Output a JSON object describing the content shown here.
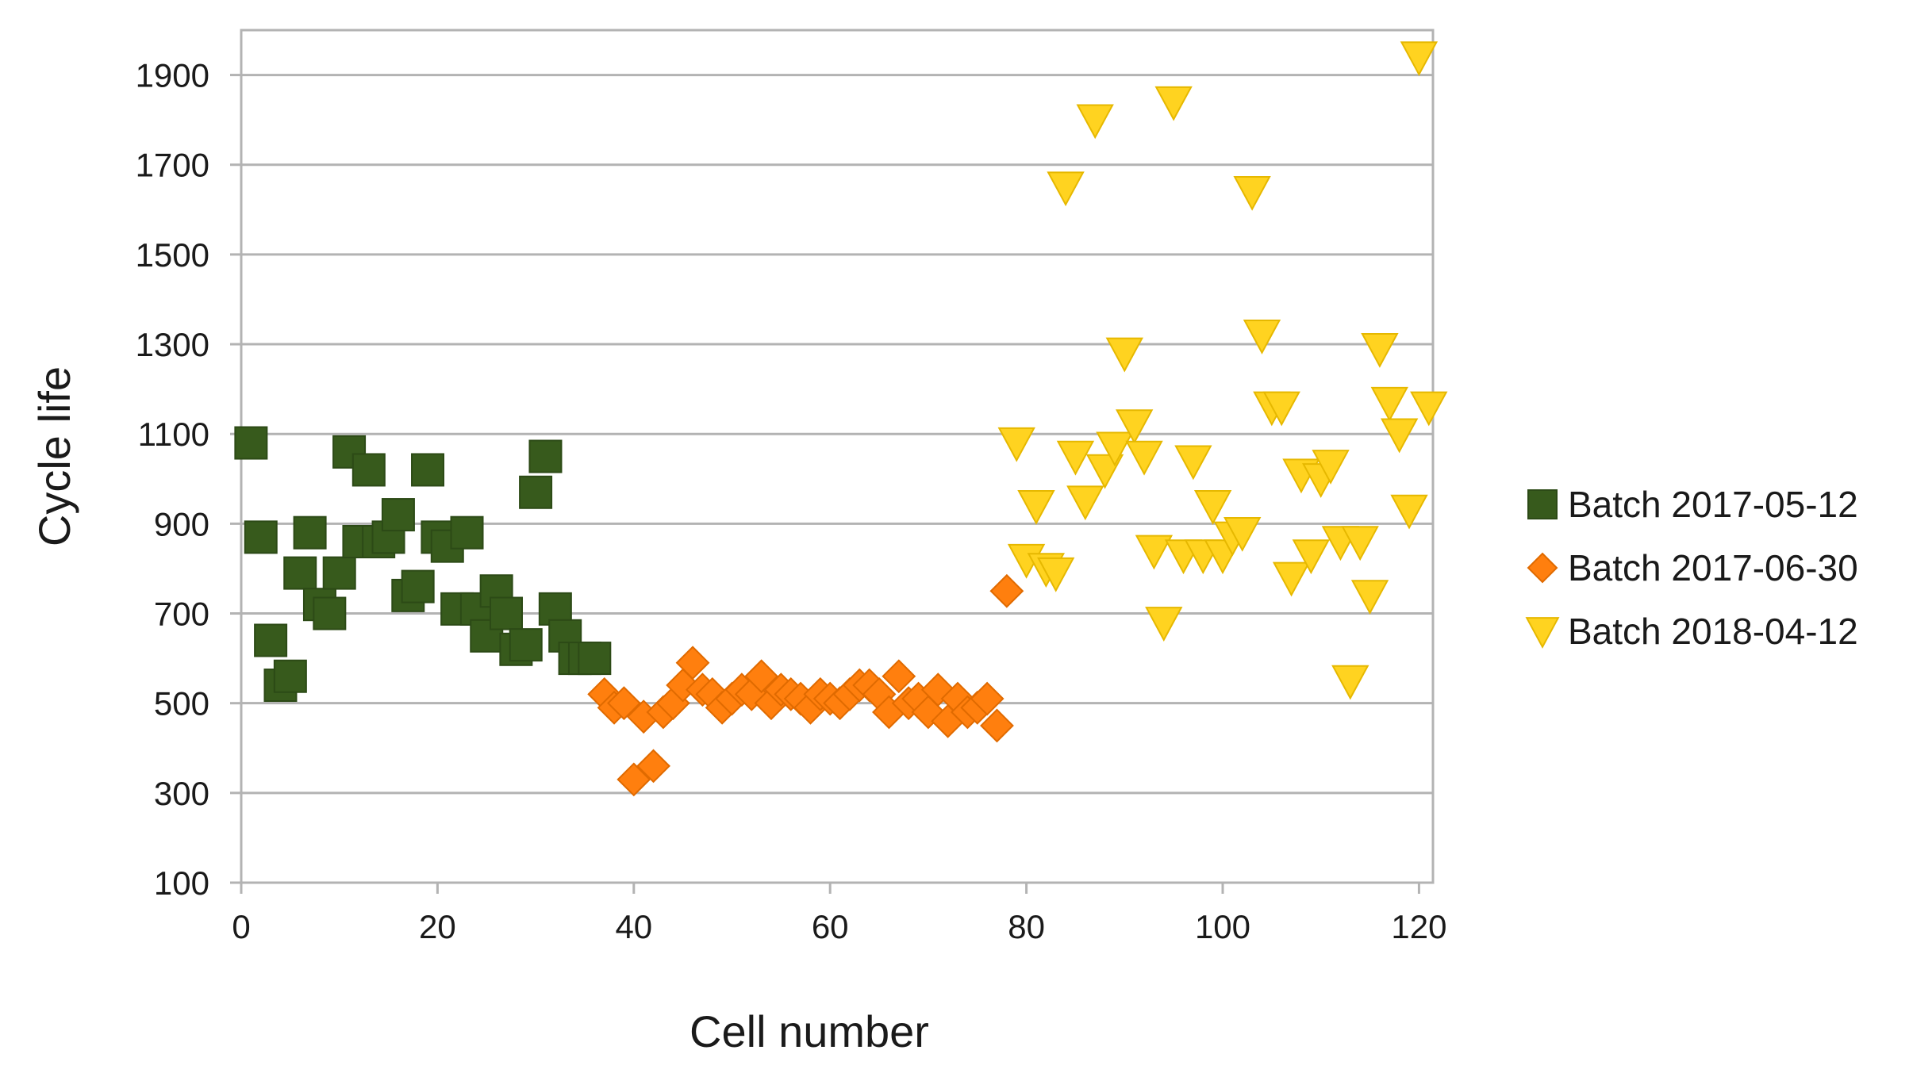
{
  "chart_data": {
    "type": "scatter",
    "title": "",
    "xlabel": "Cell number",
    "ylabel": "Cycle life",
    "xlim": [
      0,
      122
    ],
    "ylim": [
      100,
      2000
    ],
    "xticks": [
      0,
      20,
      40,
      60,
      80,
      100,
      120
    ],
    "yticks": [
      100,
      300,
      500,
      700,
      900,
      1100,
      1300,
      1500,
      1700,
      1900
    ],
    "grid": "horizontal",
    "legend_position": "right",
    "series": [
      {
        "name": "Batch 2017-05-12",
        "marker": "square",
        "color": "#375a1c",
        "x": [
          1,
          2,
          3,
          4,
          5,
          6,
          7,
          8,
          9,
          10,
          11,
          12,
          13,
          14,
          15,
          16,
          17,
          18,
          19,
          20,
          21,
          22,
          23,
          24,
          25,
          26,
          27,
          28,
          29,
          30,
          31,
          32,
          33,
          34,
          35,
          36
        ],
        "y": [
          1080,
          870,
          640,
          540,
          560,
          790,
          880,
          720,
          700,
          790,
          1060,
          860,
          1020,
          860,
          870,
          920,
          740,
          760,
          1020,
          870,
          850,
          710,
          880,
          710,
          650,
          750,
          700,
          620,
          630,
          970,
          1050,
          710,
          650,
          600,
          600,
          600
        ]
      },
      {
        "name": "Batch 2017-06-30",
        "marker": "diamond",
        "color": "#ff7f0e",
        "x": [
          37,
          38,
          39,
          40,
          41,
          42,
          43,
          44,
          45,
          46,
          47,
          48,
          49,
          50,
          51,
          52,
          53,
          54,
          55,
          56,
          57,
          58,
          59,
          60,
          61,
          62,
          63,
          64,
          65,
          66,
          67,
          68,
          69,
          70,
          71,
          72,
          73,
          74,
          75,
          76,
          77,
          78
        ],
        "y": [
          520,
          490,
          500,
          330,
          470,
          360,
          480,
          500,
          540,
          590,
          530,
          520,
          490,
          510,
          530,
          520,
          560,
          500,
          530,
          520,
          510,
          490,
          520,
          510,
          500,
          520,
          540,
          540,
          520,
          480,
          560,
          500,
          510,
          480,
          530,
          460,
          510,
          480,
          490,
          510,
          450,
          750
        ]
      },
      {
        "name": "Batch 2018-04-12",
        "marker": "triangle-down",
        "color": "#ffd320",
        "x": [
          79,
          80,
          81,
          82,
          83,
          84,
          85,
          86,
          87,
          88,
          89,
          90,
          91,
          92,
          93,
          94,
          95,
          96,
          97,
          98,
          99,
          100,
          101,
          102,
          103,
          104,
          105,
          106,
          107,
          108,
          109,
          110,
          111,
          112,
          113,
          114,
          115,
          116,
          117,
          118,
          119,
          120,
          121
        ],
        "y": [
          1080,
          820,
          940,
          800,
          790,
          1650,
          1050,
          950,
          1800,
          1020,
          1070,
          1280,
          1120,
          1050,
          840,
          680,
          1840,
          830,
          1040,
          830,
          940,
          830,
          870,
          880,
          1640,
          1320,
          1160,
          1160,
          780,
          1010,
          830,
          1000,
          1030,
          860,
          550,
          860,
          740,
          1290,
          1170,
          1100,
          930,
          1940,
          1160
        ]
      }
    ]
  }
}
